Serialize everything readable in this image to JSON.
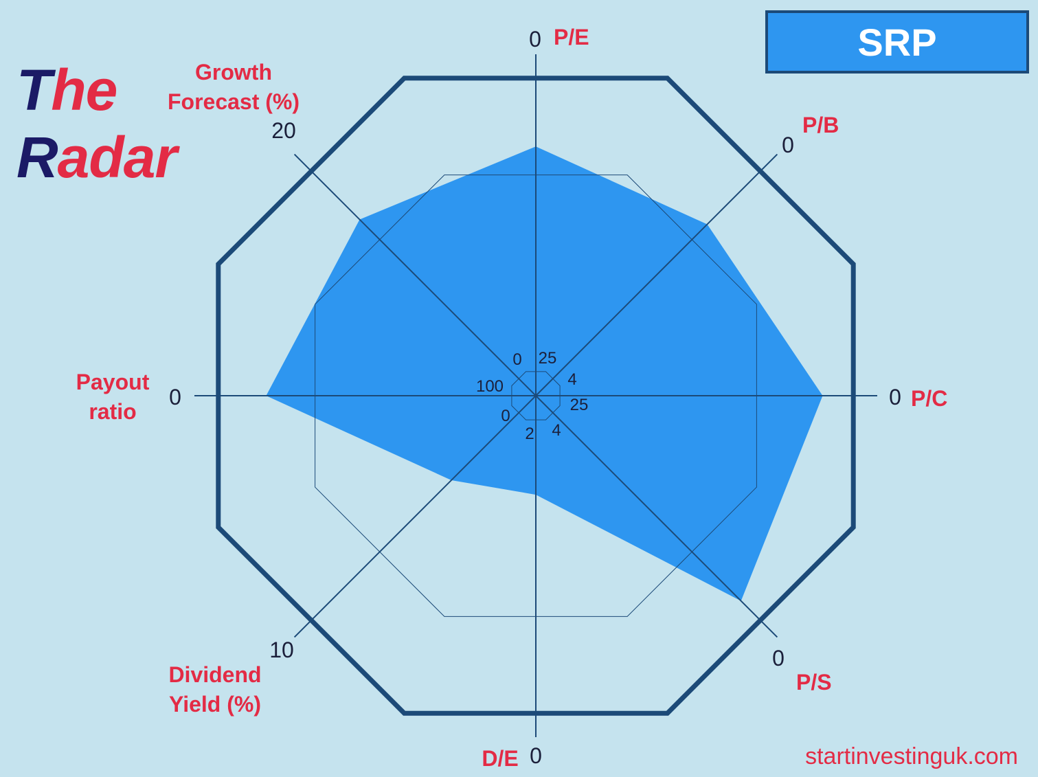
{
  "brand": {
    "line1_cap": "T",
    "line1_rest": "he",
    "line2_cap": "R",
    "line2_rest": "adar"
  },
  "ticker": "SRP",
  "footer": "startinvestinguk.com",
  "colors": {
    "fill": "#2e96f0",
    "frame": "#1c4a78",
    "label": "#e32b45",
    "tick": "#1b1f3a",
    "background": "#c5e3ee"
  },
  "chart_data": {
    "type": "radar",
    "axes": [
      {
        "name": "P/E",
        "outer": "0",
        "inner": "25",
        "value": 0.73
      },
      {
        "name": "P/B",
        "outer": "0",
        "inner": "4",
        "value": 0.71
      },
      {
        "name": "P/C",
        "outer": "0",
        "inner": "25",
        "value": 0.84
      },
      {
        "name": "P/S",
        "outer": "0",
        "inner": "4",
        "value": 0.85
      },
      {
        "name": "D/E",
        "outer": "0",
        "inner": "2",
        "value": 0.29
      },
      {
        "name": "Dividend Yield (%)",
        "outer": "10",
        "inner": "0",
        "value": 0.35
      },
      {
        "name": "Payout ratio",
        "outer": "0",
        "inner": "100",
        "value": 0.79
      },
      {
        "name": "Growth Forecast (%)",
        "outer": "20",
        "inner": "0",
        "value": 0.73
      }
    ],
    "reference_ring": 0.7
  }
}
